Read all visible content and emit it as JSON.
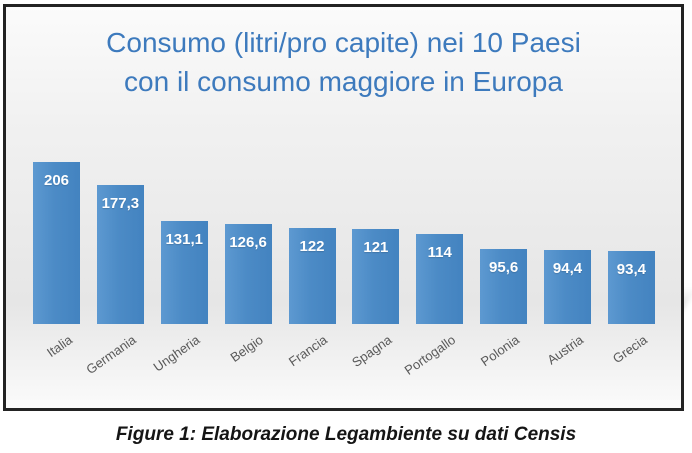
{
  "figure": {
    "title_line1": "Consumo (litri/pro capite) nei 10 Paesi",
    "title_line2": "con il consumo maggiore in Europa",
    "caption": "Figure 1: Elaborazione Legambiente su dati Censis"
  },
  "chart_data": {
    "type": "bar",
    "title": "Consumo (litri/pro capite) nei 10 Paesi con il consumo maggiore in Europa",
    "categories": [
      "Italia",
      "Germania",
      "Ungheria",
      "Belgio",
      "Francia",
      "Spagna",
      "Portogallo",
      "Polonia",
      "Austria",
      "Grecia"
    ],
    "values": [
      206,
      177.3,
      131.1,
      126.6,
      122,
      121,
      114,
      95.6,
      94.4,
      93.4
    ],
    "value_labels": [
      "206",
      "177,3",
      "131,1",
      "126,6",
      "122",
      "121",
      "114",
      "95,6",
      "94,4",
      "93,4"
    ],
    "xlabel": "",
    "ylabel": "",
    "ylim": [
      0,
      206
    ],
    "grid": false,
    "legend": "none",
    "bar_color": "#4c8bc6",
    "title_color": "#3d7abd",
    "axis_label_color": "#595959",
    "value_label_color": "#ffffff"
  }
}
